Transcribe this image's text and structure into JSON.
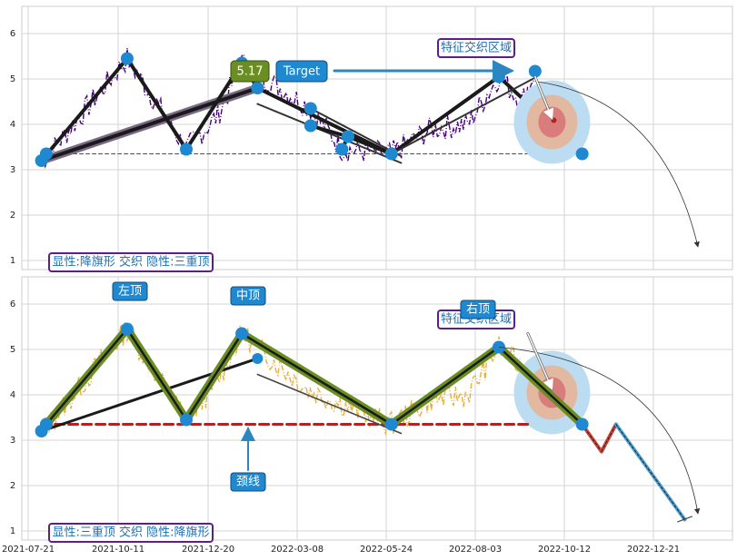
{
  "chart_data": [
    {
      "type": "line",
      "panel": "top",
      "ylim": [
        0.8,
        6.6
      ],
      "yticks": [
        1,
        2,
        3,
        4,
        5,
        6
      ],
      "grid": true,
      "annotation_box": "显性:降旗形 交织 隐性:三重顶",
      "price_box": "5.17",
      "target_box": "Target",
      "zone_label": "特征交织区域",
      "pivots": [
        {
          "x": "2021-08-01",
          "y": 3.2
        },
        {
          "x": "2021-08-05",
          "y": 3.35
        },
        {
          "x": "2021-10-11",
          "y": 5.45
        },
        {
          "x": "2021-11-29",
          "y": 3.45
        },
        {
          "x": "2022-01-14",
          "y": 5.35
        },
        {
          "x": "2022-01-27",
          "y": 4.8
        },
        {
          "x": "2022-03-12",
          "y": 4.35
        },
        {
          "x": "2022-03-12",
          "y": 3.97
        },
        {
          "x": "2022-04-07",
          "y": 3.45
        },
        {
          "x": "2022-04-12",
          "y": 3.73
        },
        {
          "x": "2022-05-18",
          "y": 3.35
        },
        {
          "x": "2022-08-15",
          "y": 5.05
        },
        {
          "x": "2022-09-14",
          "y": 5.17
        },
        {
          "x": "2022-10-23",
          "y": 3.35
        }
      ],
      "neckline": 3.35
    },
    {
      "type": "line",
      "panel": "bottom",
      "ylim": [
        0.8,
        6.6
      ],
      "yticks": [
        1,
        2,
        3,
        4,
        5,
        6
      ],
      "grid": true,
      "annotation_box": "显性:三重顶 交织 隐性:降旗形",
      "labels": {
        "left": "左顶",
        "middle": "中顶",
        "right": "右顶",
        "neck": "颈线",
        "zone": "特征交织区域"
      },
      "pivots": [
        {
          "x": "2021-08-01",
          "y": 3.2
        },
        {
          "x": "2021-08-05",
          "y": 3.35
        },
        {
          "x": "2021-10-11",
          "y": 5.45
        },
        {
          "x": "2021-11-29",
          "y": 3.45
        },
        {
          "x": "2022-01-14",
          "y": 5.35
        },
        {
          "x": "2022-05-18",
          "y": 3.35
        },
        {
          "x": "2022-08-15",
          "y": 5.05
        },
        {
          "x": "2022-10-23",
          "y": 3.35
        }
      ],
      "projection": [
        {
          "x": "2022-10-23",
          "y": 3.35
        },
        {
          "x": "2022-11-08",
          "y": 2.75
        },
        {
          "x": "2022-11-20",
          "y": 3.35
        },
        {
          "x": "2023-01-16",
          "y": 1.25
        }
      ],
      "neckline": 3.35
    }
  ],
  "x_ticks": [
    "2021-07-21",
    "2021-10-11",
    "2021-12-20",
    "2022-03-08",
    "2022-05-24",
    "2022-08-03",
    "2022-10-12",
    "2022-12-21"
  ],
  "colors": {
    "top_price": "#4b0082",
    "bottom_price": "#e8b040",
    "pattern_black": "#1a1a1a",
    "pattern_green": "#6b8e23",
    "neck_red": "#b22222",
    "marker_blue": "#1e88d0",
    "label_blue": "#1e88d0",
    "zone_outer": "#bcdcf2",
    "zone_mid": "#e3b8a0",
    "zone_inner": "#d87c7c",
    "purple_border": "#5b1e8a",
    "proj_red": "#d0453b",
    "proj_blue": "#4aa3d8"
  }
}
